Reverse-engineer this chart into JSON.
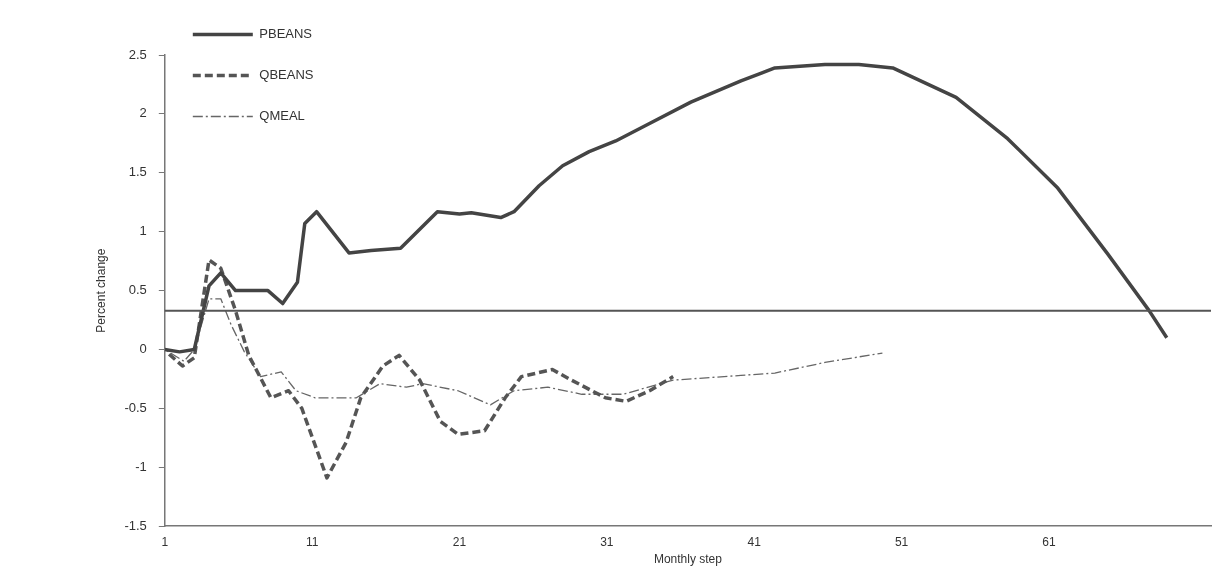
{
  "chart_data": {
    "type": "line",
    "xlabel": "Monthly step",
    "ylabel": "Percent change",
    "xlim": [
      1,
      72
    ],
    "xticks": [
      1,
      11,
      21,
      31,
      41,
      51,
      61
    ],
    "ylim": [
      -1.5,
      2.5
    ],
    "yticks": [
      -1.5,
      -1,
      -0.5,
      0,
      0.5,
      1,
      1.5,
      2,
      2.5
    ],
    "grid": false,
    "legend": "top left",
    "marker": "none",
    "ref_lines": [
      {
        "axis": "y",
        "value": 0.33,
        "color": "#555555"
      }
    ],
    "series": [
      {
        "name": "PBEANS",
        "color": "#444444",
        "line_style": "solid",
        "x": [
          1,
          2,
          3,
          4,
          4.8,
          5.8,
          7,
          8,
          9,
          10,
          10.5,
          11.3,
          12.5,
          13.5,
          15,
          17,
          19.5,
          21,
          21.8,
          23.8,
          24.7,
          26.4,
          28,
          29.8,
          31.6,
          33.6,
          36.7,
          40.1,
          42.4,
          45.8,
          48.1,
          50.4,
          54.7,
          58.2,
          61.6,
          65,
          67.8,
          69
        ],
        "values": [
          0,
          -0.02,
          0,
          0.54,
          0.65,
          0.5,
          0.5,
          0.5,
          0.39,
          0.57,
          1.07,
          1.17,
          0.98,
          0.82,
          0.84,
          0.86,
          1.17,
          1.15,
          1.16,
          1.12,
          1.17,
          1.39,
          1.56,
          1.68,
          1.77,
          1.9,
          2.1,
          2.28,
          2.39,
          2.42,
          2.42,
          2.39,
          2.14,
          1.79,
          1.37,
          0.81,
          0.33,
          0.1
        ]
      },
      {
        "name": "QBEANS",
        "color": "#555555",
        "line_style": "dashed",
        "x": [
          1.2,
          2.2,
          3,
          4,
          4.8,
          5.8,
          6.7,
          8.2,
          9.4,
          10.3,
          12,
          13.3,
          14.3,
          15.8,
          16.9,
          18.3,
          19.7,
          20.9,
          22.7,
          24.1,
          25.2,
          27.3,
          28.6,
          30.9,
          32.3,
          33.9,
          35.5
        ],
        "values": [
          -0.03,
          -0.14,
          -0.07,
          0.76,
          0.69,
          0.33,
          -0.05,
          -0.41,
          -0.35,
          -0.5,
          -1.09,
          -0.79,
          -0.41,
          -0.14,
          -0.05,
          -0.26,
          -0.61,
          -0.72,
          -0.69,
          -0.41,
          -0.23,
          -0.17,
          -0.26,
          -0.41,
          -0.44,
          -0.35,
          -0.23
        ]
      },
      {
        "name": "QMEAL",
        "color": "#666666",
        "line_style": "dotted",
        "x": [
          1,
          2.3,
          3,
          4,
          4.8,
          5.5,
          6.4,
          7.5,
          8.9,
          9.9,
          11.2,
          14,
          15.6,
          17.4,
          18.5,
          20.9,
          23.1,
          24.7,
          27,
          29.3,
          32.1,
          35.5,
          40.1,
          42.4,
          45.8,
          49.7
        ],
        "values": [
          0,
          -0.1,
          0,
          0.43,
          0.43,
          0.21,
          -0.02,
          -0.23,
          -0.19,
          -0.35,
          -0.41,
          -0.41,
          -0.29,
          -0.32,
          -0.29,
          -0.35,
          -0.47,
          -0.35,
          -0.32,
          -0.38,
          -0.38,
          -0.26,
          -0.22,
          -0.2,
          -0.11,
          -0.03
        ]
      }
    ]
  }
}
